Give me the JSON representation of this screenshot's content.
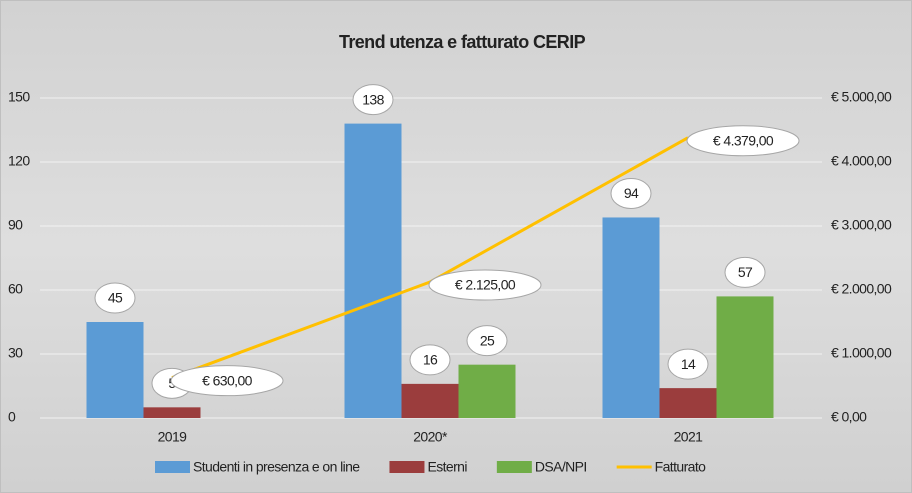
{
  "chart_data": {
    "type": "bar",
    "title": "Trend utenza e fatturato CERIP",
    "categories": [
      "2019",
      "2020*",
      "2021"
    ],
    "series": [
      {
        "name": "Studenti in presenza e on line",
        "color": "#5b9bd5",
        "values": [
          45,
          138,
          94
        ]
      },
      {
        "name": "Esterni",
        "color": "#9b3d3d",
        "values": [
          5,
          16,
          14
        ]
      },
      {
        "name": "DSA/NPI",
        "color": "#70ad47",
        "values": [
          null,
          25,
          57
        ]
      },
      {
        "name": "Fatturato",
        "type": "line",
        "axis": "y2",
        "color": "#ffc000",
        "values": [
          630,
          2125,
          4379
        ],
        "value_labels": [
          "€ 630,00",
          "€ 2.125,00",
          "€ 4.379,00"
        ]
      }
    ],
    "ylim": [
      0,
      150
    ],
    "yticks": [
      0,
      30,
      60,
      90,
      120,
      150
    ],
    "y2lim": [
      0,
      5000
    ],
    "y2ticks": [
      {
        "value": 0,
        "label": "€ 0,00"
      },
      {
        "value": 1000,
        "label": "€ 1.000,00"
      },
      {
        "value": 2000,
        "label": "€ 2.000,00"
      },
      {
        "value": 3000,
        "label": "€ 3.000,00"
      },
      {
        "value": 4000,
        "label": "€ 4.000,00"
      },
      {
        "value": 5000,
        "label": "€ 5.000,00"
      }
    ],
    "grid": true,
    "legend": "bottom"
  }
}
